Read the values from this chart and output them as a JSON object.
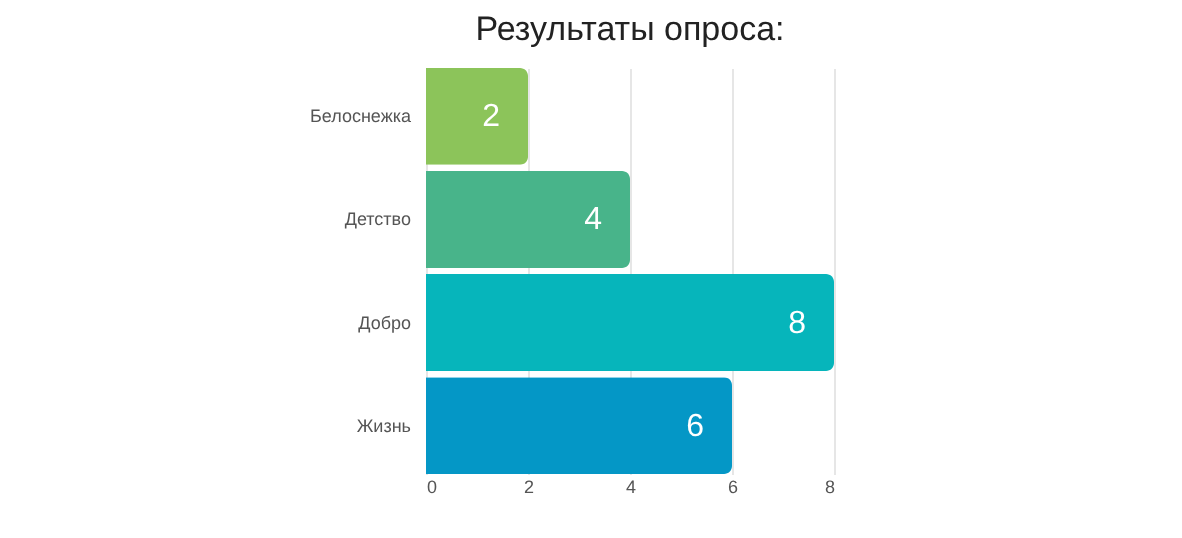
{
  "chart_data": {
    "type": "bar",
    "orientation": "horizontal",
    "title": "Результаты опроса:",
    "categories": [
      "Белоснежка",
      "Детство",
      "Добро",
      "Жизнь"
    ],
    "values": [
      2,
      4,
      8,
      6
    ],
    "colors": [
      "#8cc45a",
      "#48b48a",
      "#06b5bb",
      "#0497c6"
    ],
    "xlim": [
      0,
      8
    ],
    "xticks": [
      0,
      2,
      4,
      6,
      8
    ],
    "grid": "x",
    "data_labels": true
  }
}
